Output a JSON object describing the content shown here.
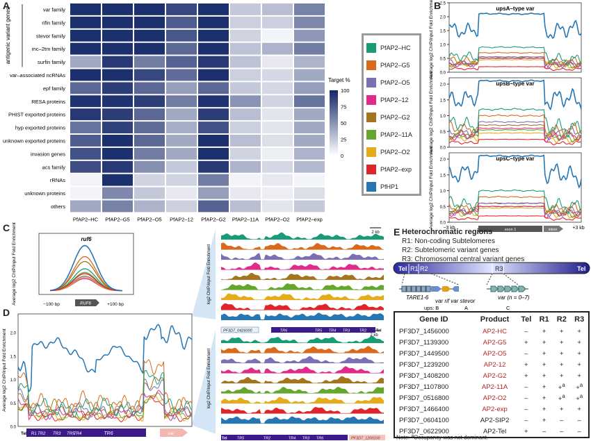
{
  "panel_letters": {
    "a": "A",
    "b": "B",
    "c": "C",
    "d": "D",
    "e": "E"
  },
  "heatmap": {
    "rows": [
      "var family",
      "rifin family",
      "stevor family",
      "mc–2tm family",
      "surfin family",
      "var–associated ncRNAs",
      "epf family",
      "RESA proteins",
      "PHIST exported proteins",
      "hyp exported proteins",
      "unknown exported proteins",
      "invasion genes",
      "acs family",
      "rRNAs",
      "unknown proteins",
      "others"
    ],
    "cols": [
      "PfAP2–HC",
      "PfAP2–G5",
      "PfAP2–O5",
      "PfAP2–12",
      "PfAP2–G2",
      "PfAP2–11A",
      "PfAP2–O2",
      "PfAP2–exp"
    ],
    "values": [
      [
        96,
        96,
        96,
        85,
        96,
        25,
        30,
        58
      ],
      [
        96,
        96,
        96,
        75,
        96,
        22,
        22,
        55
      ],
      [
        96,
        96,
        96,
        78,
        96,
        20,
        5,
        48
      ],
      [
        96,
        96,
        96,
        70,
        96,
        28,
        35,
        60
      ],
      [
        40,
        92,
        60,
        72,
        92,
        28,
        10,
        35
      ],
      [
        96,
        96,
        85,
        68,
        96,
        22,
        18,
        40
      ],
      [
        70,
        90,
        70,
        45,
        70,
        25,
        18,
        45
      ],
      [
        95,
        95,
        90,
        60,
        95,
        50,
        20,
        65
      ],
      [
        92,
        90,
        70,
        40,
        90,
        30,
        12,
        40
      ],
      [
        65,
        88,
        68,
        38,
        80,
        22,
        12,
        40
      ],
      [
        75,
        96,
        70,
        40,
        96,
        30,
        15,
        40
      ],
      [
        80,
        96,
        60,
        40,
        96,
        20,
        8,
        35
      ],
      [
        82,
        92,
        52,
        25,
        92,
        35,
        18,
        32
      ],
      [
        5,
        96,
        20,
        20,
        60,
        5,
        10,
        5
      ],
      [
        5,
        55,
        25,
        10,
        45,
        10,
        8,
        15
      ],
      [
        40,
        58,
        35,
        22,
        72,
        30,
        12,
        25
      ]
    ],
    "antigenic_label": "antigenic variant genes",
    "scale_title": "Target %",
    "scale_ticks": [
      "100",
      "75",
      "50",
      "25",
      "0"
    ],
    "color_low": "#ffffff",
    "color_high": "#142768"
  },
  "legend": [
    {
      "name": "PfAP2–HC",
      "color": "#1a9b77"
    },
    {
      "name": "PfAP2–G5",
      "color": "#d96a1b"
    },
    {
      "name": "PfAP2–O5",
      "color": "#7a70b3"
    },
    {
      "name": "PfAP2–12",
      "color": "#e12b89"
    },
    {
      "name": "PfAP2–G2",
      "color": "#a3761e"
    },
    {
      "name": "PfAP2–11A",
      "color": "#63a72d"
    },
    {
      "name": "PfAP2–O2",
      "color": "#e6ab1a"
    },
    {
      "name": "PfAP2–exp",
      "color": "#e0242b"
    },
    {
      "name": "PfHP1",
      "color": "#2676b4"
    }
  ],
  "panel_b": {
    "titles": [
      "upsA–type var",
      "upsB–type var",
      "upsC–type var"
    ],
    "ylabel": "Average log2 ChIP/input Fold Enrichment",
    "yticks_top": [
      "2.5",
      "2.0",
      "1.5",
      "1.0",
      "0.5",
      "0.0"
    ],
    "yticks": [
      "2.0",
      "1.5",
      "1.0",
      "0.5",
      "0.0"
    ],
    "xlabels": [
      "−3 kb",
      "+3 kb"
    ],
    "exon": "exon 1",
    "intron": "intron"
  },
  "panel_c": {
    "title": "ruf6",
    "ylabel": "Average log2 ChIP/input Fold Enrichment",
    "xlabels": [
      "−100 bp",
      "+100 bp"
    ],
    "gene": "RUF6"
  },
  "panel_d": {
    "ylabel": "Average log2 ChIP/input Fold Enrichment",
    "yticks": [
      "2.0",
      "1.5",
      "1.0",
      "0.5",
      "0.0"
    ],
    "elements": [
      "Tel",
      "R1",
      "TR2",
      "TR3",
      "TR5",
      "TR4",
      "TR6",
      "var"
    ]
  },
  "tracks": {
    "ylabel": "log2 ChIP/input Fold Enrichment",
    "scale": "2 kb",
    "gene_top": "PF3D7_0426000",
    "gene_bottom": "PF3D7_1200100",
    "top_bar": [
      "TR6",
      "TR5",
      "TR4",
      "TR3",
      "TR2"
    ],
    "bottom_bar": [
      "TR5",
      "TR2",
      "TR4",
      "TR3",
      "TR6"
    ],
    "top_end": "Tel",
    "bottom_start": "Tel"
  },
  "panel_e": {
    "title": "Heterochromatic regions",
    "lines": [
      "R1: Non-coding Subtelomeres",
      "R2: Subtelomeric variant genes",
      "R3: Chromosomal central variant genes"
    ],
    "chrom": [
      "Tel",
      "R1",
      "R2",
      "R3",
      "Tel"
    ],
    "tare": "TARE1-6",
    "genes_left": "var rif var stevor",
    "ups_left": "ups:  B",
    "ups_a": "A",
    "genes_right": "var (n = 0–7)",
    "ups_c": "C"
  },
  "gene_table": {
    "headers": [
      "Gene ID",
      "Product",
      "Tel",
      "R1",
      "R2",
      "R3"
    ],
    "rows": [
      [
        "PF3D7_1456000",
        "AP2-HC",
        "–",
        "+",
        "+",
        "+"
      ],
      [
        "PF3D7_1139300",
        "AP2-G5",
        "+",
        "+",
        "+",
        "+"
      ],
      [
        "PF3D7_1449500",
        "AP2-O5",
        "–",
        "+",
        "+",
        "+"
      ],
      [
        "PF3D7_1239200",
        "AP2-12",
        "+",
        "+",
        "+",
        "+"
      ],
      [
        "PF3D7_1408200",
        "AP2-G2",
        "+",
        "+",
        "+",
        "+"
      ],
      [
        "PF3D7_1107800",
        "AP2-11A",
        "–",
        "+",
        "+a",
        "+a"
      ],
      [
        "PF3D7_0516800",
        "AP2-O2",
        "–",
        "+",
        "+a",
        "+a"
      ],
      [
        "PF3D7_1466400",
        "AP2-exp",
        "–",
        "+",
        "+",
        "+"
      ],
      [
        "PF3D7_0604100",
        "AP2-SIP2",
        "–",
        "+",
        "–",
        "–"
      ],
      [
        "PF3D7_0622900",
        "AP2-Tel",
        "+",
        "–",
        "–",
        "–"
      ]
    ],
    "red_rows": [
      0,
      1,
      2,
      3,
      4,
      5,
      6,
      7
    ],
    "note": "Note: aOccupancy was not dominant."
  }
}
